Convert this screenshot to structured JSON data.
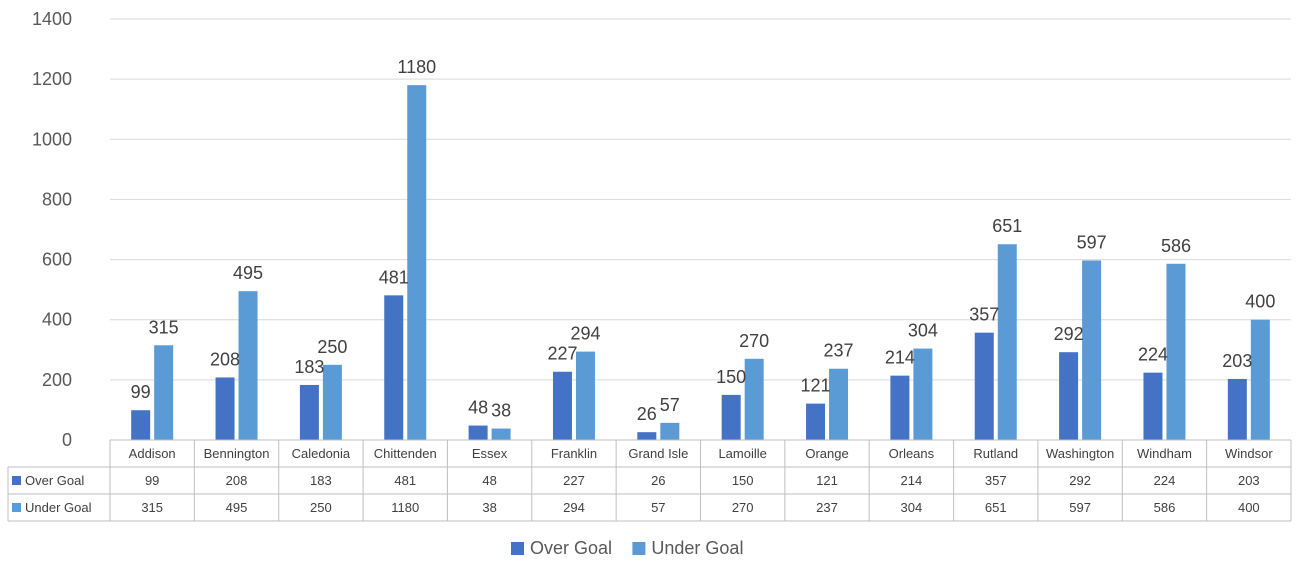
{
  "chart_data": {
    "type": "bar",
    "title": "",
    "xlabel": "",
    "ylabel": "",
    "ylim": [
      0,
      1400
    ],
    "yticks": [
      0,
      200,
      400,
      600,
      800,
      1000,
      1200,
      1400
    ],
    "grid": true,
    "legend_position": "bottom",
    "data_table": true,
    "categories": [
      "Addison",
      "Bennington",
      "Caledonia",
      "Chittenden",
      "Essex",
      "Franklin",
      "Grand Isle",
      "Lamoille",
      "Orange",
      "Orleans",
      "Rutland",
      "Washington",
      "Windham",
      "Windsor"
    ],
    "series": [
      {
        "name": "Over Goal",
        "color": "#4472C4",
        "values": [
          99,
          208,
          183,
          481,
          48,
          227,
          26,
          150,
          121,
          214,
          357,
          292,
          224,
          203
        ]
      },
      {
        "name": "Under Goal",
        "color": "#5B9BD5",
        "values": [
          315,
          495,
          250,
          1180,
          38,
          294,
          57,
          270,
          237,
          304,
          651,
          597,
          586,
          400
        ]
      }
    ]
  }
}
